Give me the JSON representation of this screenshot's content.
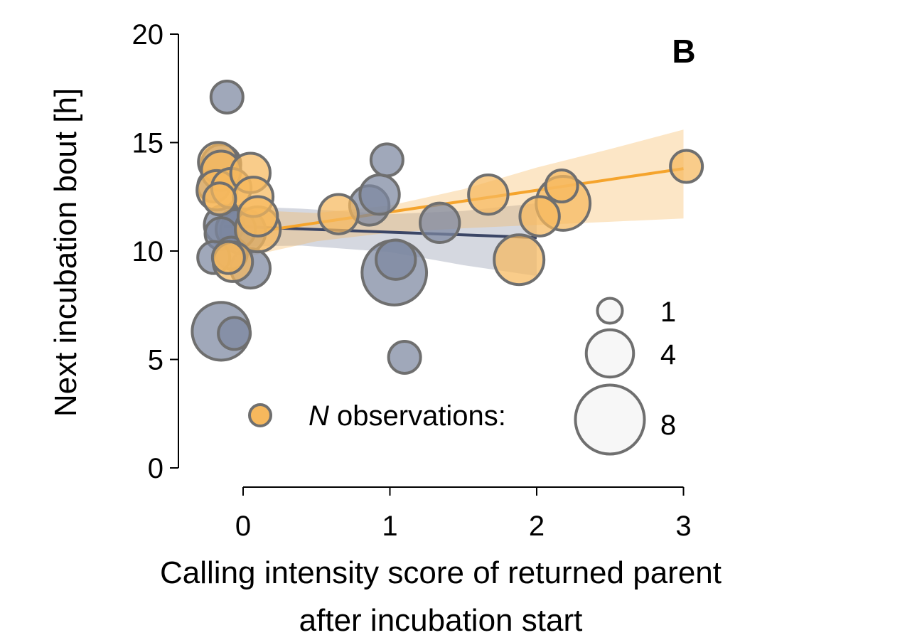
{
  "chart_data": {
    "type": "scatter",
    "panel_label": "B",
    "xlabel_lines": [
      "Calling intensity score of returned parent",
      "after incubation start"
    ],
    "ylabel": "Next incubation bout [h]",
    "xlim": [
      -0.45,
      3.0
    ],
    "ylim": [
      0,
      20
    ],
    "x_ticks": [
      0,
      1,
      2,
      3
    ],
    "x_tick_labels": [
      "0",
      "1",
      "2",
      "3"
    ],
    "y_ticks": [
      0,
      5,
      10,
      15,
      20
    ],
    "y_tick_labels": [
      "0",
      "5",
      "10",
      "15",
      "20"
    ],
    "grid": false,
    "colors": {
      "series_a": "#7b86a0",
      "series_a_line": "#3b4666",
      "series_b": "#f6b85d",
      "series_b_line": "#f5a42c",
      "marker_edge": "#6f6f6f",
      "legend_fill": "#f7f7f7"
    },
    "series": [
      {
        "key": "blue",
        "points": [
          {
            "x": -0.11,
            "y": 17.1,
            "n": 1
          },
          {
            "x": -0.15,
            "y": 14.0,
            "n": 2
          },
          {
            "x": -0.2,
            "y": 13.0,
            "n": 1
          },
          {
            "x": -0.13,
            "y": 11.2,
            "n": 2
          },
          {
            "x": -0.15,
            "y": 10.8,
            "n": 1
          },
          {
            "x": -0.05,
            "y": 11.0,
            "n": 2
          },
          {
            "x": 0.0,
            "y": 10.9,
            "n": 3
          },
          {
            "x": -0.08,
            "y": 9.9,
            "n": 1
          },
          {
            "x": -0.2,
            "y": 9.7,
            "n": 1
          },
          {
            "x": 0.05,
            "y": 9.2,
            "n": 2
          },
          {
            "x": -0.15,
            "y": 6.3,
            "n": 6
          },
          {
            "x": -0.06,
            "y": 6.2,
            "n": 1
          },
          {
            "x": 0.86,
            "y": 12.1,
            "n": 2
          },
          {
            "x": 0.93,
            "y": 12.6,
            "n": 2
          },
          {
            "x": 0.98,
            "y": 14.2,
            "n": 1
          },
          {
            "x": 1.03,
            "y": 9.0,
            "n": 8
          },
          {
            "x": 1.04,
            "y": 9.6,
            "n": 2
          },
          {
            "x": 1.1,
            "y": 5.1,
            "n": 1
          },
          {
            "x": 1.34,
            "y": 11.3,
            "n": 2
          }
        ],
        "fit": {
          "x": [
            -0.13,
            2.0
          ],
          "y": [
            11.15,
            10.62
          ]
        },
        "ci": {
          "x": [
            -0.13,
            0.4,
            1.0,
            1.5,
            2.0
          ],
          "lower": [
            10.2,
            10.25,
            9.95,
            9.35,
            8.85
          ],
          "upper": [
            12.1,
            11.95,
            11.7,
            11.85,
            12.2
          ]
        }
      },
      {
        "key": "orange",
        "points": [
          {
            "x": -0.17,
            "y": 14.1,
            "n": 2
          },
          {
            "x": -0.15,
            "y": 13.7,
            "n": 2
          },
          {
            "x": -0.18,
            "y": 12.8,
            "n": 2
          },
          {
            "x": -0.16,
            "y": 12.4,
            "n": 1
          },
          {
            "x": -0.08,
            "y": 12.9,
            "n": 2
          },
          {
            "x": 0.05,
            "y": 13.6,
            "n": 2
          },
          {
            "x": 0.07,
            "y": 12.5,
            "n": 2
          },
          {
            "x": 0.1,
            "y": 11.6,
            "n": 2
          },
          {
            "x": 0.1,
            "y": 11.0,
            "n": 3
          },
          {
            "x": -0.07,
            "y": 9.5,
            "n": 2
          },
          {
            "x": -0.1,
            "y": 9.7,
            "n": 1
          },
          {
            "x": 0.65,
            "y": 11.7,
            "n": 2
          },
          {
            "x": 1.67,
            "y": 12.6,
            "n": 2
          },
          {
            "x": 1.88,
            "y": 9.6,
            "n": 4
          },
          {
            "x": 2.02,
            "y": 11.6,
            "n": 2
          },
          {
            "x": 2.17,
            "y": 13.0,
            "n": 1
          },
          {
            "x": 2.18,
            "y": 12.2,
            "n": 5
          },
          {
            "x": 3.02,
            "y": 13.9,
            "n": 1
          }
        ],
        "fit": {
          "x": [
            0.0,
            3.0
          ],
          "y": [
            10.8,
            13.8
          ]
        },
        "ci": {
          "x": [
            0.0,
            0.5,
            1.0,
            1.5,
            2.0,
            2.5,
            3.0
          ],
          "lower": [
            9.7,
            10.45,
            10.85,
            11.05,
            11.2,
            11.35,
            11.5
          ],
          "upper": [
            11.9,
            11.75,
            12.1,
            12.85,
            13.85,
            14.7,
            15.6
          ]
        }
      }
    ],
    "legend": {
      "placement": "bottom-right",
      "marker_label_italic": "N",
      "marker_label_rest": " observations:",
      "sizes": [
        {
          "n": 1,
          "label": "1"
        },
        {
          "n": 4,
          "label": "4"
        },
        {
          "n": 8,
          "label": "8"
        }
      ]
    }
  }
}
